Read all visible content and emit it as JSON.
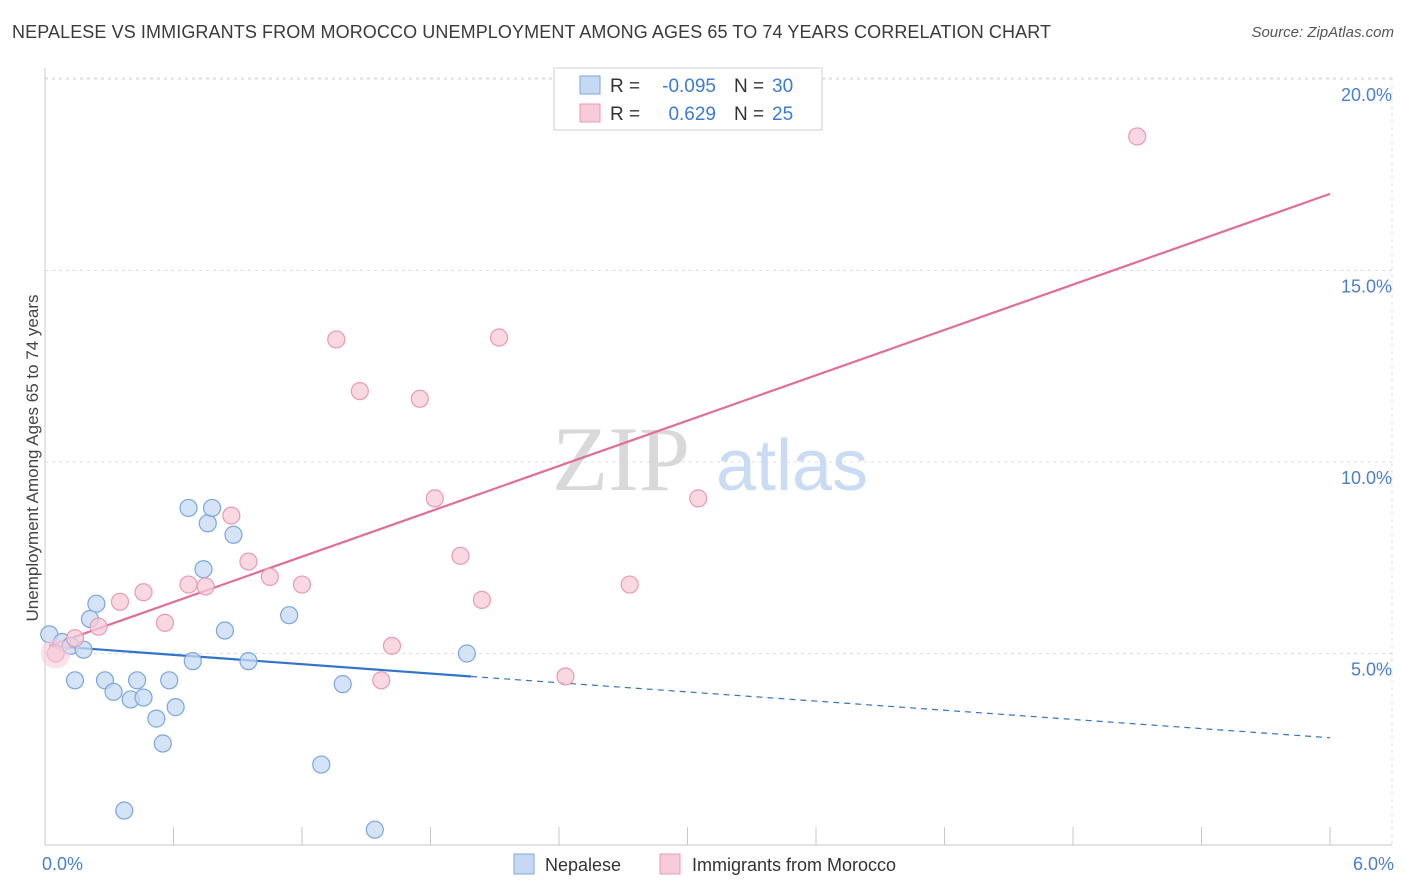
{
  "header": {
    "title": "NEPALESE VS IMMIGRANTS FROM MOROCCO UNEMPLOYMENT AMONG AGES 65 TO 74 YEARS CORRELATION CHART",
    "source": "Source: ZipAtlas.com"
  },
  "watermark": {
    "zip": "ZIP",
    "atlas": "atlas"
  },
  "legend": {
    "r_label": "R =",
    "n_label": "N =",
    "rows": [
      {
        "name": "Nepalese",
        "r": "-0.095",
        "n": "30"
      },
      {
        "name": "Immigrants from Morocco",
        "r": "0.629",
        "n": "25"
      }
    ]
  },
  "colors": {
    "nepalese_fill": "#c5d9f3",
    "nepalese_stroke": "#7aa6e0",
    "nepalese_line": "#3274c9",
    "morocco_fill": "#f7cbd8",
    "morocco_stroke": "#e89ab3",
    "morocco_line": "#e06e96"
  },
  "chart_data": {
    "type": "scatter",
    "title": "NEPALESE VS IMMIGRANTS FROM MOROCCO UNEMPLOYMENT AMONG AGES 65 TO 74 YEARS CORRELATION CHART",
    "xlabel": "",
    "ylabel": "Unemployment Among Ages 65 to 74 years",
    "xlim": [
      0,
      6
    ],
    "ylim": [
      0,
      20
    ],
    "x_tick_labels": [
      "0.0%",
      "6.0%"
    ],
    "y_tick_values": [
      5,
      10,
      15,
      20
    ],
    "y_tick_labels": [
      "5.0%",
      "10.0%",
      "15.0%",
      "20.0%"
    ],
    "grid": true,
    "legend_position": "top-center",
    "series": [
      {
        "name": "Nepalese",
        "r": -0.095,
        "n": 30,
        "points": [
          [
            0.02,
            5.5
          ],
          [
            0.08,
            5.3
          ],
          [
            0.12,
            5.2
          ],
          [
            0.14,
            4.3
          ],
          [
            0.18,
            5.1
          ],
          [
            0.21,
            5.9
          ],
          [
            0.24,
            6.3
          ],
          [
            0.28,
            4.3
          ],
          [
            0.32,
            4.0
          ],
          [
            0.37,
            0.9
          ],
          [
            0.4,
            3.8
          ],
          [
            0.43,
            4.3
          ],
          [
            0.46,
            3.85
          ],
          [
            0.52,
            3.3
          ],
          [
            0.55,
            2.65
          ],
          [
            0.58,
            4.3
          ],
          [
            0.61,
            3.6
          ],
          [
            0.67,
            8.8
          ],
          [
            0.69,
            4.8
          ],
          [
            0.74,
            7.2
          ],
          [
            0.76,
            8.4
          ],
          [
            0.78,
            8.8
          ],
          [
            0.84,
            5.6
          ],
          [
            0.88,
            8.1
          ],
          [
            0.95,
            4.8
          ],
          [
            1.14,
            6.0
          ],
          [
            1.29,
            2.1
          ],
          [
            1.39,
            4.2
          ],
          [
            1.54,
            0.4
          ],
          [
            1.97,
            5.0
          ]
        ],
        "trend_solid": [
          [
            0.02,
            5.2
          ],
          [
            1.99,
            4.4
          ]
        ],
        "trend_dashed": [
          [
            1.99,
            4.4
          ],
          [
            6.0,
            2.8
          ]
        ]
      },
      {
        "name": "Immigrants from Morocco",
        "r": 0.629,
        "n": 25,
        "points": [
          [
            0.05,
            5.0
          ],
          [
            0.14,
            5.4
          ],
          [
            0.25,
            5.7
          ],
          [
            0.35,
            6.35
          ],
          [
            0.46,
            6.6
          ],
          [
            0.56,
            5.8
          ],
          [
            0.67,
            6.8
          ],
          [
            0.75,
            6.75
          ],
          [
            0.87,
            8.6
          ],
          [
            0.95,
            7.4
          ],
          [
            1.05,
            7.0
          ],
          [
            1.2,
            6.8
          ],
          [
            1.36,
            13.2
          ],
          [
            1.47,
            11.85
          ],
          [
            1.57,
            4.3
          ],
          [
            1.62,
            5.2
          ],
          [
            1.75,
            11.65
          ],
          [
            1.82,
            9.05
          ],
          [
            1.94,
            7.55
          ],
          [
            2.04,
            6.4
          ],
          [
            2.12,
            13.25
          ],
          [
            2.43,
            4.4
          ],
          [
            2.73,
            6.8
          ],
          [
            3.05,
            9.05
          ],
          [
            5.1,
            18.5
          ]
        ],
        "trend_solid": [
          [
            0.02,
            5.2
          ],
          [
            6.0,
            17.0
          ]
        ]
      }
    ]
  }
}
